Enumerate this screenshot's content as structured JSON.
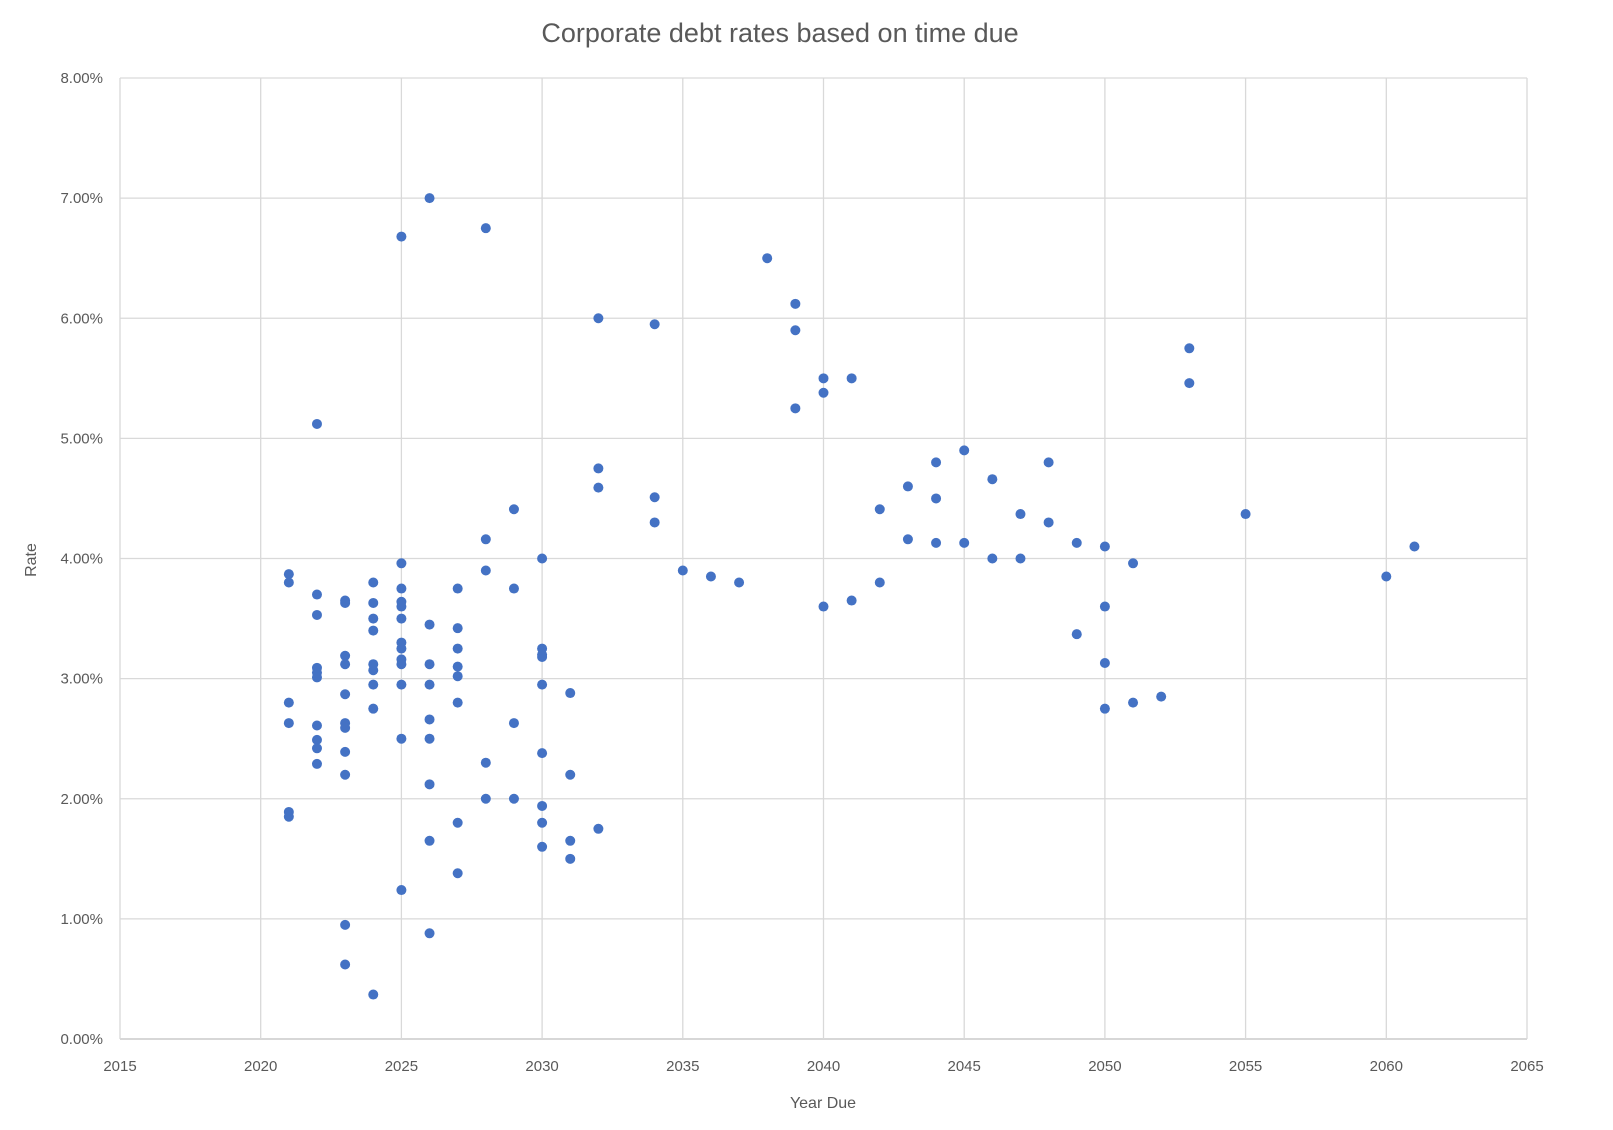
{
  "chart_data": {
    "type": "scatter",
    "title": "Corporate debt rates based on time due",
    "xlabel": "Year Due",
    "ylabel": "Rate",
    "xlim": [
      2015,
      2065
    ],
    "ylim": [
      0,
      0.08
    ],
    "grid": true,
    "legend": "none",
    "marker_color": "#4472c4",
    "x_ticks": [
      "2015",
      "2020",
      "2025",
      "2030",
      "2035",
      "2040",
      "2045",
      "2050",
      "2055",
      "2060",
      "2065"
    ],
    "y_ticks": [
      "0.00%",
      "1.00%",
      "2.00%",
      "3.00%",
      "4.00%",
      "5.00%",
      "6.00%",
      "7.00%",
      "8.00%"
    ],
    "points": [
      [
        2021,
        3.87
      ],
      [
        2021,
        3.8
      ],
      [
        2021,
        2.8
      ],
      [
        2021,
        2.63
      ],
      [
        2021,
        1.89
      ],
      [
        2021,
        1.85
      ],
      [
        2022,
        5.12
      ],
      [
        2022,
        3.7
      ],
      [
        2022,
        3.53
      ],
      [
        2022,
        3.09
      ],
      [
        2022,
        3.05
      ],
      [
        2022,
        3.01
      ],
      [
        2022,
        2.61
      ],
      [
        2022,
        2.49
      ],
      [
        2022,
        2.42
      ],
      [
        2022,
        2.29
      ],
      [
        2023,
        3.65
      ],
      [
        2023,
        3.63
      ],
      [
        2023,
        3.19
      ],
      [
        2023,
        3.12
      ],
      [
        2023,
        2.87
      ],
      [
        2023,
        2.63
      ],
      [
        2023,
        2.59
      ],
      [
        2023,
        2.39
      ],
      [
        2023,
        2.2
      ],
      [
        2023,
        0.95
      ],
      [
        2023,
        0.62
      ],
      [
        2024,
        3.8
      ],
      [
        2024,
        3.63
      ],
      [
        2024,
        3.5
      ],
      [
        2024,
        3.4
      ],
      [
        2024,
        3.12
      ],
      [
        2024,
        3.07
      ],
      [
        2024,
        2.95
      ],
      [
        2024,
        2.75
      ],
      [
        2024,
        0.37
      ],
      [
        2025,
        6.68
      ],
      [
        2025,
        3.96
      ],
      [
        2025,
        3.75
      ],
      [
        2025,
        3.64
      ],
      [
        2025,
        3.6
      ],
      [
        2025,
        3.5
      ],
      [
        2025,
        3.3
      ],
      [
        2025,
        3.25
      ],
      [
        2025,
        3.16
      ],
      [
        2025,
        3.12
      ],
      [
        2025,
        2.95
      ],
      [
        2025,
        2.5
      ],
      [
        2025,
        1.24
      ],
      [
        2026,
        7.0
      ],
      [
        2026,
        3.45
      ],
      [
        2026,
        3.12
      ],
      [
        2026,
        2.95
      ],
      [
        2026,
        2.66
      ],
      [
        2026,
        2.5
      ],
      [
        2026,
        2.12
      ],
      [
        2026,
        1.65
      ],
      [
        2026,
        0.88
      ],
      [
        2027,
        3.75
      ],
      [
        2027,
        3.42
      ],
      [
        2027,
        3.25
      ],
      [
        2027,
        3.1
      ],
      [
        2027,
        3.02
      ],
      [
        2027,
        2.8
      ],
      [
        2027,
        1.8
      ],
      [
        2027,
        1.38
      ],
      [
        2028,
        6.75
      ],
      [
        2028,
        4.16
      ],
      [
        2028,
        3.9
      ],
      [
        2028,
        2.3
      ],
      [
        2028,
        2.0
      ],
      [
        2029,
        4.41
      ],
      [
        2029,
        3.75
      ],
      [
        2029,
        2.63
      ],
      [
        2029,
        2.0
      ],
      [
        2030,
        4.0
      ],
      [
        2030,
        3.25
      ],
      [
        2030,
        3.2
      ],
      [
        2030,
        3.18
      ],
      [
        2030,
        2.95
      ],
      [
        2030,
        2.38
      ],
      [
        2030,
        1.94
      ],
      [
        2030,
        1.8
      ],
      [
        2030,
        1.6
      ],
      [
        2031,
        2.88
      ],
      [
        2031,
        2.2
      ],
      [
        2031,
        1.65
      ],
      [
        2031,
        1.5
      ],
      [
        2032,
        6.0
      ],
      [
        2032,
        4.75
      ],
      [
        2032,
        4.59
      ],
      [
        2032,
        1.75
      ],
      [
        2034,
        5.95
      ],
      [
        2034,
        4.51
      ],
      [
        2034,
        4.3
      ],
      [
        2035,
        3.9
      ],
      [
        2036,
        3.85
      ],
      [
        2037,
        3.8
      ],
      [
        2038,
        6.5
      ],
      [
        2039,
        6.12
      ],
      [
        2039,
        5.9
      ],
      [
        2039,
        5.25
      ],
      [
        2040,
        5.5
      ],
      [
        2040,
        5.38
      ],
      [
        2040,
        3.6
      ],
      [
        2041,
        5.5
      ],
      [
        2041,
        3.65
      ],
      [
        2042,
        4.41
      ],
      [
        2042,
        3.8
      ],
      [
        2043,
        4.6
      ],
      [
        2043,
        4.16
      ],
      [
        2044,
        4.8
      ],
      [
        2044,
        4.5
      ],
      [
        2044,
        4.13
      ],
      [
        2045,
        4.9
      ],
      [
        2045,
        4.13
      ],
      [
        2046,
        4.66
      ],
      [
        2046,
        4.0
      ],
      [
        2047,
        4.37
      ],
      [
        2047,
        4.0
      ],
      [
        2048,
        4.8
      ],
      [
        2048,
        4.3
      ],
      [
        2049,
        4.13
      ],
      [
        2049,
        3.37
      ],
      [
        2050,
        4.1
      ],
      [
        2050,
        3.6
      ],
      [
        2050,
        3.13
      ],
      [
        2050,
        2.75
      ],
      [
        2051,
        3.96
      ],
      [
        2051,
        2.8
      ],
      [
        2052,
        2.85
      ],
      [
        2053,
        5.75
      ],
      [
        2053,
        5.46
      ],
      [
        2055,
        4.37
      ],
      [
        2060,
        3.85
      ],
      [
        2061,
        4.1
      ]
    ]
  }
}
